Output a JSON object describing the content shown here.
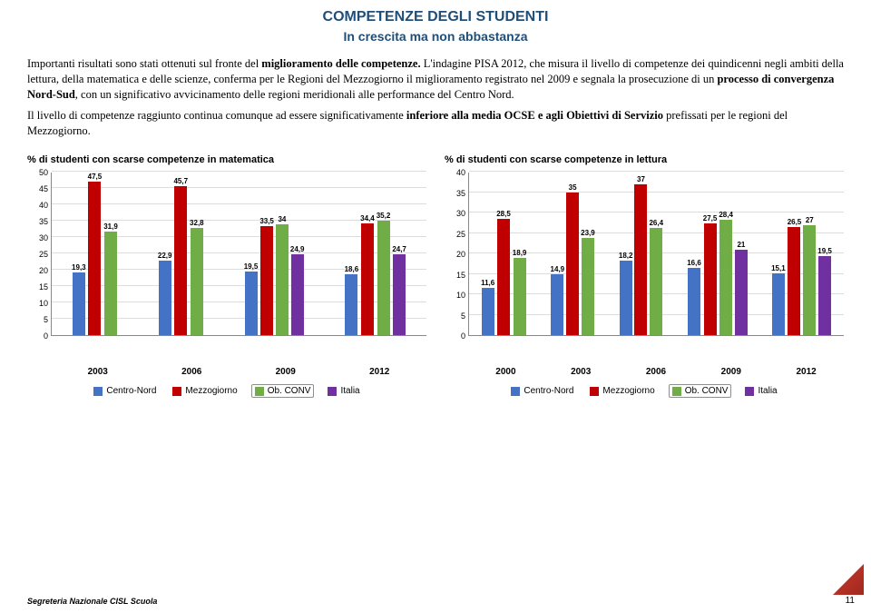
{
  "header": {
    "title": "COMPETENZE DEGLI STUDENTI",
    "subtitle": "In crescita ma non abbastanza"
  },
  "paragraphs": {
    "p1a": "Importanti risultati sono stati ottenuti sul fronte del ",
    "p1b": "miglioramento delle competenze.",
    "p1c": " L'indagine PISA 2012, che misura il livello di competenze dei quindicenni negli ambiti della lettura, della matematica e delle scienze, conferma per le Regioni del Mezzogiorno il miglioramento registrato nel 2009 e segnala la prosecuzione di un ",
    "p1d": "processo di convergenza Nord-Sud",
    "p1e": ", con un significativo avvicinamento delle regioni meridionali alle performance del Centro Nord.",
    "p2a": "Il livello di competenze raggiunto continua comunque ad essere significativamente ",
    "p2b": "inferiore alla media OCSE e agli Obiettivi di Servizio",
    "p2c": " prefissati per le regioni del Mezzogiorno."
  },
  "colors": {
    "blue": "#4472c4",
    "red": "#c00000",
    "green": "#70ad47",
    "purple": "#7030a0",
    "grid": "#dddddd"
  },
  "chart1": {
    "title": "% di studenti con scarse competenze in matematica",
    "ymax": 50,
    "ystep": 5,
    "categories": [
      "2003",
      "2006",
      "2009",
      "2012"
    ],
    "series": [
      {
        "name": "Centro-Nord",
        "color": "blue",
        "values": [
          19.3,
          22.9,
          19.5,
          18.6
        ]
      },
      {
        "name": "Mezzogiorno",
        "color": "red",
        "values": [
          47.5,
          45.7,
          33.5,
          34.4
        ]
      },
      {
        "name": "Ob. CONV",
        "color": "green",
        "values": [
          31.9,
          32.8,
          34.0,
          35.2
        ]
      },
      {
        "name": "Italia",
        "color": "purple",
        "values": [
          null,
          null,
          24.9,
          24.7
        ]
      }
    ]
  },
  "chart2": {
    "title": "% di studenti con scarse competenze in lettura",
    "ymax": 40,
    "ystep": 5,
    "categories": [
      "2000",
      "2003",
      "2006",
      "2009",
      "2012"
    ],
    "series": [
      {
        "name": "Centro-Nord",
        "color": "blue",
        "values": [
          11.6,
          14.9,
          18.2,
          16.6,
          15.1
        ]
      },
      {
        "name": "Mezzogiorno",
        "color": "red",
        "values": [
          28.5,
          35.0,
          37.0,
          27.5,
          26.5
        ]
      },
      {
        "name": "Ob. CONV",
        "color": "green",
        "values": [
          18.9,
          23.9,
          26.4,
          28.4,
          27.0
        ]
      },
      {
        "name": "Italia",
        "color": "purple",
        "values": [
          null,
          null,
          null,
          21.0,
          19.5
        ]
      }
    ]
  },
  "legend": {
    "items": [
      {
        "label": "Centro-Nord",
        "color": "blue",
        "highlight": false
      },
      {
        "label": "Mezzogiorno",
        "color": "red",
        "highlight": false
      },
      {
        "label": "Ob. CONV",
        "color": "green",
        "highlight": true
      },
      {
        "label": "Italia",
        "color": "purple",
        "highlight": false
      }
    ]
  },
  "footer": {
    "text": "Segreteria Nazionale CISL Scuola",
    "page": "11"
  }
}
